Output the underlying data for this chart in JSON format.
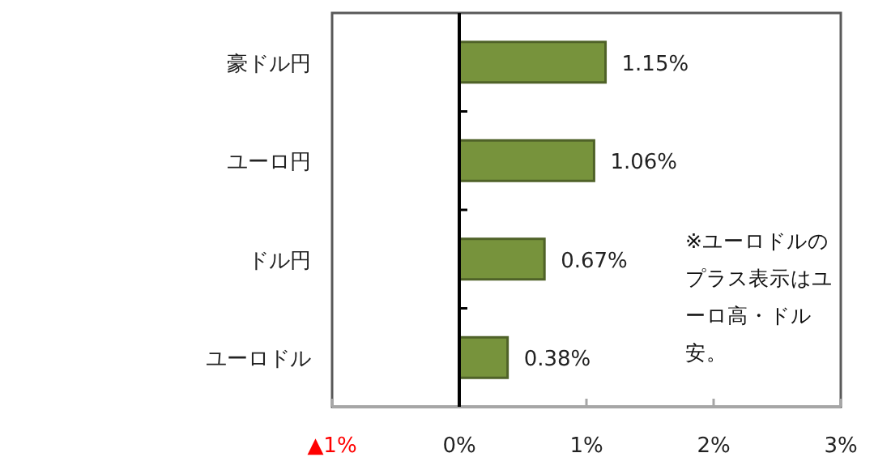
{
  "chart_data": {
    "type": "bar",
    "orientation": "horizontal",
    "categories": [
      "豪ドル円",
      "ユーロ円",
      "ドル円",
      "ユーロドル"
    ],
    "values": [
      1.15,
      1.06,
      0.67,
      0.38
    ],
    "value_labels": [
      "1.15%",
      "1.06%",
      "0.67%",
      "0.38%"
    ],
    "color": "#77933c",
    "xlim": [
      -1,
      3
    ],
    "xticks": [
      {
        "value": -1,
        "label": "▲1%"
      },
      {
        "value": 0,
        "label": "0%"
      },
      {
        "value": 1,
        "label": "1%"
      },
      {
        "value": 2,
        "label": "2%"
      },
      {
        "value": 3,
        "label": "3%"
      }
    ],
    "annotations": [
      "※ユーロドルのプラス表示はユーロ高・ドル安。"
    ]
  }
}
